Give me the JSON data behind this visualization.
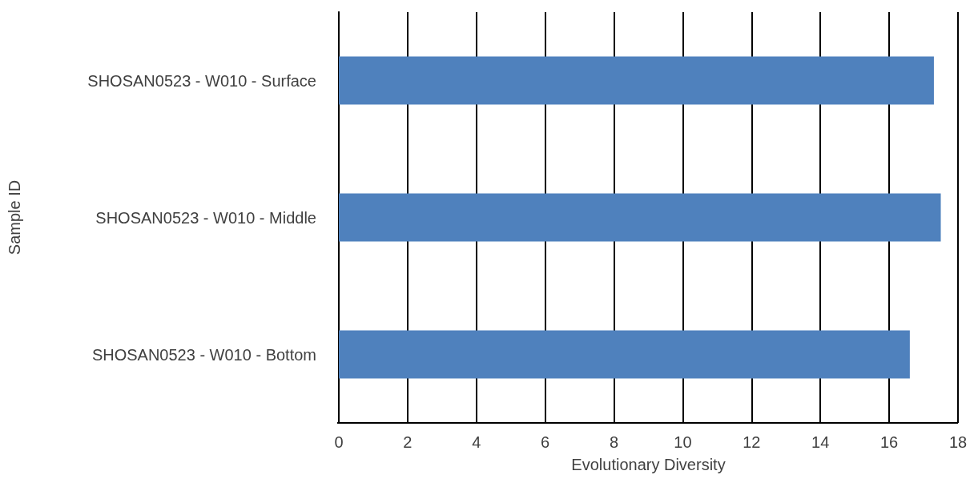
{
  "chart_data": {
    "type": "bar",
    "orientation": "horizontal",
    "categories": [
      "SHOSAN0523 - W010 - Surface",
      "SHOSAN0523 - W010 - Middle",
      "SHOSAN0523 - W010 - Bottom"
    ],
    "values": [
      17.3,
      17.5,
      16.6
    ],
    "color": "#4f81bd",
    "xlabel": "Evolutionary Diversity",
    "ylabel": "Sample ID",
    "xlim": [
      0,
      18
    ],
    "xticks": [
      0,
      2,
      4,
      6,
      8,
      10,
      12,
      14,
      16,
      18
    ],
    "grid": "x"
  }
}
